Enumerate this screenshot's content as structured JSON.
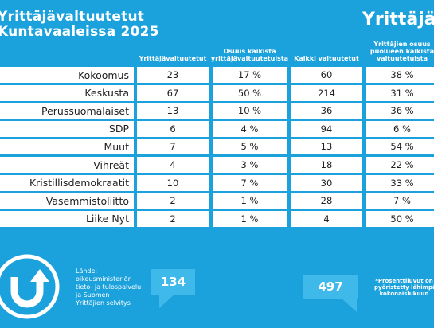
{
  "header": {
    "title_lines": [
      "Yrittäjävaltuutetut",
      "Kuntavaaleissa 2025"
    ],
    "logo": "Yrittäjät"
  },
  "table": {
    "columns": [
      "Yrittäjävaltuutetut",
      "Osuus kaikista yrittäjävaltuutetuista",
      "Kaikki valtuutetut",
      "Yrittäjien osuus puolueen kaikista valtuutetuista"
    ],
    "rows": [
      [
        "Kokoomus",
        23,
        "17 %",
        60,
        "38 %"
      ],
      [
        "Keskusta",
        67,
        "50 %",
        214,
        "31 %"
      ],
      [
        "Perussuomalaiset",
        13,
        "10 %",
        36,
        "36 %"
      ],
      [
        "SDP",
        6,
        "4 %",
        94,
        "6 %"
      ],
      [
        "Muut",
        7,
        "5 %",
        13,
        "54 %"
      ],
      [
        "Vihreät",
        4,
        "3 %",
        18,
        "22 %"
      ],
      [
        "Kristillisdemokraatit",
        10,
        "7 %",
        30,
        "33 %"
      ],
      [
        "Vasemmistoliitto",
        2,
        "1 %",
        28,
        "7 %"
      ],
      [
        "Liike Nyt",
        2,
        "1 %",
        4,
        "50 %"
      ]
    ]
  },
  "footer": {
    "source": [
      "Lähde:",
      "oikeusministeriön",
      "tieto- ja tulospalvelu",
      "ja Suomen",
      "Yrittäjien selvitys"
    ],
    "total_entrepreneurs": 134,
    "total_councillors": 497,
    "note": [
      "*Prosenttiluvut on",
      "pyöristetty lähimpään",
      "kokonaislukuun"
    ]
  }
}
